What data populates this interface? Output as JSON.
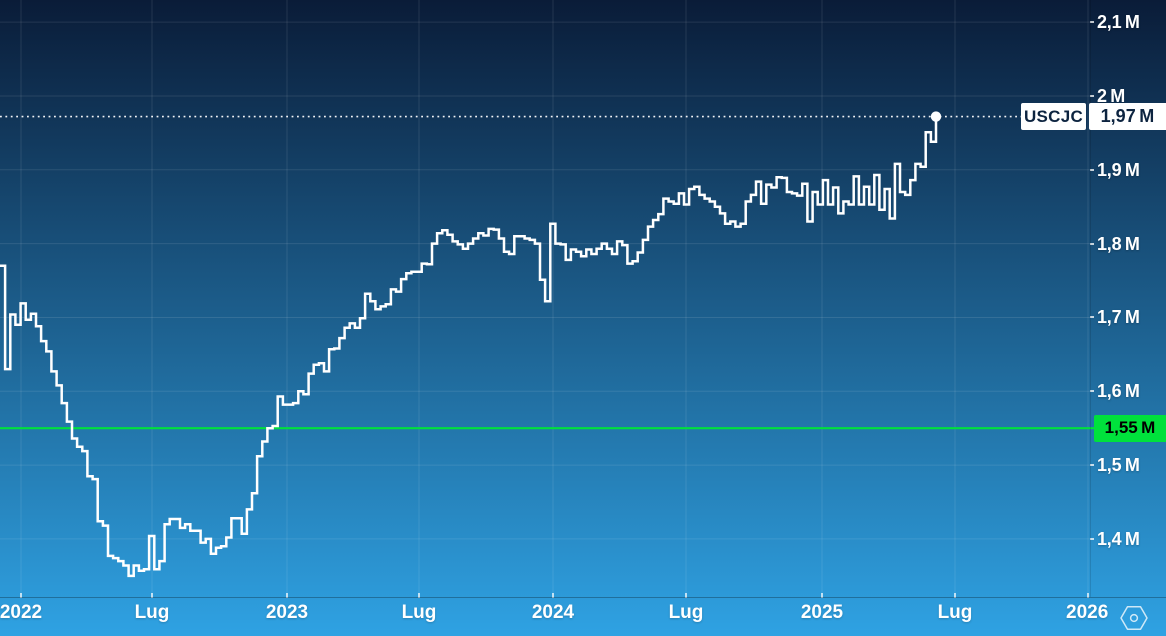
{
  "price_label": {
    "symbol": "USCJC",
    "value": "1,97 M"
  },
  "level_label": {
    "value": "1,55 M"
  },
  "y_axis_ticks": [
    {
      "label": "2,1 M",
      "value": 2.1
    },
    {
      "label": "2 M",
      "value": 2.0
    },
    {
      "label": "1,9 M",
      "value": 1.9
    },
    {
      "label": "1,8 M",
      "value": 1.8
    },
    {
      "label": "1,7 M",
      "value": 1.7
    },
    {
      "label": "1,6 M",
      "value": 1.6
    },
    {
      "label": "1,5 M",
      "value": 1.5
    },
    {
      "label": "1,4 M",
      "value": 1.4
    }
  ],
  "x_axis_ticks": [
    {
      "label": "2022",
      "x": 21
    },
    {
      "label": "Lug",
      "x": 152
    },
    {
      "label": "2023",
      "x": 287
    },
    {
      "label": "Lug",
      "x": 419
    },
    {
      "label": "2024",
      "x": 553
    },
    {
      "label": "Lug",
      "x": 686
    },
    {
      "label": "2025",
      "x": 822
    },
    {
      "label": "Lug",
      "x": 955
    },
    {
      "label": "2026",
      "x": 1088,
      "clipped": true
    }
  ],
  "controls": {
    "logo_icon": "hexagon-circle-icon"
  },
  "colors": {
    "bg_top": "#0a1c38",
    "bg_bottom": "#2fa2e3",
    "line": "#ffffff",
    "grid": "rgba(255,255,255,0.10)",
    "level": "#00e13c",
    "label_text": "#0d2440"
  },
  "chart_data": {
    "type": "line",
    "line_style": "step-after",
    "series_name": "USCJC",
    "frequency": "weekly",
    "unit": "M",
    "ylim": [
      1.32,
      2.13
    ],
    "x_step": 5.1429,
    "grid": true,
    "level_line": {
      "value": 1.55
    },
    "price_line": {
      "value": 1.972,
      "style": "dotted"
    },
    "last_value": 1.97,
    "values": [
      1.77,
      1.63,
      1.704,
      1.69,
      1.719,
      1.697,
      1.705,
      1.688,
      1.668,
      1.654,
      1.627,
      1.608,
      1.584,
      1.559,
      1.536,
      1.525,
      1.519,
      1.485,
      1.481,
      1.424,
      1.418,
      1.377,
      1.374,
      1.37,
      1.364,
      1.35,
      1.364,
      1.357,
      1.359,
      1.404,
      1.359,
      1.37,
      1.42,
      1.427,
      1.427,
      1.415,
      1.42,
      1.411,
      1.411,
      1.395,
      1.4,
      1.38,
      1.388,
      1.39,
      1.402,
      1.428,
      1.428,
      1.407,
      1.44,
      1.462,
      1.512,
      1.532,
      1.55,
      1.553,
      1.593,
      1.582,
      1.582,
      1.584,
      1.6,
      1.596,
      1.624,
      1.636,
      1.638,
      1.627,
      1.657,
      1.658,
      1.672,
      1.686,
      1.692,
      1.686,
      1.699,
      1.732,
      1.722,
      1.711,
      1.715,
      1.718,
      1.738,
      1.735,
      1.752,
      1.76,
      1.762,
      1.762,
      1.773,
      1.772,
      1.8,
      1.814,
      1.818,
      1.812,
      1.803,
      1.799,
      1.793,
      1.8,
      1.807,
      1.814,
      1.811,
      1.82,
      1.819,
      1.807,
      1.789,
      1.786,
      1.81,
      1.81,
      1.807,
      1.805,
      1.8,
      1.751,
      1.722,
      1.827,
      1.8,
      1.799,
      1.778,
      1.792,
      1.789,
      1.783,
      1.792,
      1.786,
      1.793,
      1.8,
      1.793,
      1.786,
      1.803,
      1.798,
      1.773,
      1.776,
      1.788,
      1.805,
      1.823,
      1.832,
      1.84,
      1.861,
      1.857,
      1.854,
      1.868,
      1.853,
      1.874,
      1.877,
      1.866,
      1.861,
      1.857,
      1.85,
      1.841,
      1.827,
      1.83,
      1.823,
      1.827,
      1.857,
      1.866,
      1.884,
      1.854,
      1.88,
      1.876,
      1.89,
      1.889,
      1.87,
      1.868,
      1.865,
      1.881,
      1.83,
      1.87,
      1.853,
      1.886,
      1.853,
      1.876,
      1.841,
      1.857,
      1.853,
      1.891,
      1.853,
      1.877,
      1.853,
      1.893,
      1.846,
      1.874,
      1.834,
      1.908,
      1.87,
      1.866,
      1.886,
      1.908,
      1.904,
      1.951,
      1.938,
      1.972
    ]
  }
}
